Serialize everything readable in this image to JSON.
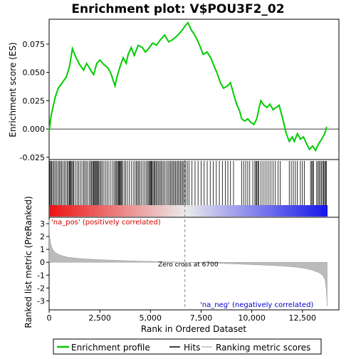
{
  "chart_data": {
    "type": "line",
    "title": "Enrichment plot: V$POU3F2_02",
    "top_panel": {
      "ylabel": "Enrichment score (ES)",
      "ylim": [
        -0.027,
        0.097
      ],
      "yticks": [
        -0.025,
        0.0,
        0.025,
        0.05,
        0.075
      ],
      "ytick_labels": [
        "-0.025",
        "0.000",
        "0.025",
        "0.050",
        "0.075"
      ],
      "series_name": "Enrichment profile",
      "color": "#00cc00",
      "es_points": [
        [
          0,
          -0.002
        ],
        [
          100,
          0.012
        ],
        [
          300,
          0.028
        ],
        [
          450,
          0.036
        ],
        [
          650,
          0.041
        ],
        [
          850,
          0.046
        ],
        [
          1000,
          0.055
        ],
        [
          1150,
          0.071
        ],
        [
          1300,
          0.064
        ],
        [
          1500,
          0.057
        ],
        [
          1700,
          0.052
        ],
        [
          1850,
          0.058
        ],
        [
          2050,
          0.052
        ],
        [
          2200,
          0.048
        ],
        [
          2350,
          0.058
        ],
        [
          2500,
          0.061
        ],
        [
          2700,
          0.057
        ],
        [
          2900,
          0.054
        ],
        [
          3050,
          0.049
        ],
        [
          3250,
          0.038
        ],
        [
          3350,
          0.046
        ],
        [
          3500,
          0.055
        ],
        [
          3650,
          0.063
        ],
        [
          3800,
          0.058
        ],
        [
          3900,
          0.066
        ],
        [
          4050,
          0.072
        ],
        [
          4200,
          0.065
        ],
        [
          4400,
          0.074
        ],
        [
          4600,
          0.072
        ],
        [
          4750,
          0.068
        ],
        [
          4950,
          0.072
        ],
        [
          5100,
          0.076
        ],
        [
          5300,
          0.074
        ],
        [
          5500,
          0.079
        ],
        [
          5700,
          0.083
        ],
        [
          5900,
          0.077
        ],
        [
          6100,
          0.079
        ],
        [
          6300,
          0.082
        ],
        [
          6450,
          0.085
        ],
        [
          6600,
          0.088
        ],
        [
          6700,
          0.091
        ],
        [
          6850,
          0.094
        ],
        [
          7000,
          0.088
        ],
        [
          7150,
          0.084
        ],
        [
          7300,
          0.079
        ],
        [
          7450,
          0.073
        ],
        [
          7600,
          0.066
        ],
        [
          7800,
          0.068
        ],
        [
          8000,
          0.062
        ],
        [
          8150,
          0.055
        ],
        [
          8300,
          0.049
        ],
        [
          8450,
          0.041
        ],
        [
          8600,
          0.036
        ],
        [
          8800,
          0.038
        ],
        [
          8950,
          0.041
        ],
        [
          9100,
          0.031
        ],
        [
          9250,
          0.022
        ],
        [
          9400,
          0.016
        ],
        [
          9500,
          0.009
        ],
        [
          9650,
          0.007
        ],
        [
          9800,
          0.009
        ],
        [
          9950,
          0.006
        ],
        [
          10100,
          0.004
        ],
        [
          10250,
          0.009
        ],
        [
          10350,
          0.018
        ],
        [
          10450,
          0.025
        ],
        [
          10600,
          0.021
        ],
        [
          10750,
          0.019
        ],
        [
          10900,
          0.022
        ],
        [
          11050,
          0.017
        ],
        [
          11200,
          0.019
        ],
        [
          11350,
          0.021
        ],
        [
          11500,
          0.011
        ],
        [
          11700,
          -0.004
        ],
        [
          11850,
          -0.011
        ],
        [
          12000,
          -0.007
        ],
        [
          12100,
          -0.011
        ],
        [
          12250,
          -0.004
        ],
        [
          12400,
          -0.009
        ],
        [
          12550,
          -0.007
        ],
        [
          12700,
          -0.013
        ],
        [
          12850,
          -0.018
        ],
        [
          13000,
          -0.015
        ],
        [
          13150,
          -0.019
        ],
        [
          13300,
          -0.013
        ],
        [
          13450,
          -0.009
        ],
        [
          13600,
          -0.004
        ],
        [
          13700,
          0.002
        ]
      ]
    },
    "hits_panel": {
      "hit_color": "#000000",
      "hit_positions": [
        35,
        80,
        120,
        180,
        240,
        300,
        370,
        440,
        500,
        560,
        620,
        690,
        760,
        830,
        900,
        950,
        1000,
        1040,
        1080,
        1120,
        1170,
        1220,
        1300,
        1380,
        1460,
        1540,
        1620,
        1700,
        1760,
        1830,
        1900,
        1980,
        2050,
        2100,
        2150,
        2200,
        2240,
        2280,
        2320,
        2360,
        2400,
        2450,
        2500,
        2560,
        2620,
        2700,
        2780,
        2860,
        2950,
        3050,
        3150,
        3220,
        3280,
        3330,
        3380,
        3420,
        3460,
        3500,
        3540,
        3580,
        3620,
        3700,
        3780,
        3860,
        3950,
        4050,
        4150,
        4230,
        4300,
        4360,
        4420,
        4480,
        4560,
        4640,
        4720,
        4800,
        4870,
        4920,
        4960,
        5000,
        5040,
        5080,
        5130,
        5180,
        5230,
        5280,
        5340,
        5400,
        5460,
        5520,
        5580,
        5650,
        5720,
        5800,
        5870,
        5940,
        6000,
        6060,
        6120,
        6180,
        6240,
        6300,
        6360,
        6420,
        6480,
        6540,
        6600,
        6660,
        6740,
        6820,
        6900,
        7050,
        7200,
        7350,
        7500,
        7650,
        7800,
        7950,
        8100,
        8250,
        8400,
        8550,
        8700,
        8820,
        8950,
        9100,
        9500,
        9600,
        9700,
        9800,
        9900,
        10050,
        10150,
        10200,
        10250,
        10300,
        10350,
        10450,
        10550,
        10650,
        10750,
        10850,
        10950,
        11050,
        11150,
        11300,
        11400,
        11850,
        11950,
        12050,
        12150,
        12250,
        12400,
        12500,
        12600,
        12900,
        12960,
        13000,
        13050,
        13200,
        13260,
        13320,
        13380,
        13440,
        13500,
        13550,
        13600,
        13640,
        13680
      ]
    },
    "rank_panel": {
      "ylabel": "Ranked list metric (PreRanked)",
      "ylim": [
        -3.7,
        3.5
      ],
      "yticks": [
        -3,
        -2,
        -1,
        0,
        1,
        2,
        3
      ],
      "ytick_labels": [
        "-3",
        "-2",
        "-1",
        "0",
        "1",
        "2",
        "3"
      ],
      "series_name": "Ranking metric scores",
      "color": "#bbbbbb",
      "metric_points": [
        [
          0,
          3.3
        ],
        [
          20,
          2.1
        ],
        [
          60,
          1.6
        ],
        [
          120,
          1.2
        ],
        [
          200,
          0.95
        ],
        [
          300,
          0.78
        ],
        [
          450,
          0.62
        ],
        [
          650,
          0.5
        ],
        [
          900,
          0.4
        ],
        [
          1300,
          0.32
        ],
        [
          1800,
          0.26
        ],
        [
          2500,
          0.2
        ],
        [
          3500,
          0.14
        ],
        [
          4500,
          0.09
        ],
        [
          5500,
          0.05
        ],
        [
          6200,
          0.02
        ],
        [
          6700,
          0.0
        ],
        [
          7500,
          -0.04
        ],
        [
          8500,
          -0.09
        ],
        [
          9500,
          -0.15
        ],
        [
          10500,
          -0.21
        ],
        [
          11500,
          -0.29
        ],
        [
          12200,
          -0.38
        ],
        [
          12700,
          -0.5
        ],
        [
          13000,
          -0.62
        ],
        [
          13300,
          -0.8
        ],
        [
          13500,
          -1.0
        ],
        [
          13620,
          -1.4
        ],
        [
          13680,
          -2.2
        ],
        [
          13720,
          -3.4
        ]
      ],
      "zero_cross_label": "Zero cross at 6700",
      "zero_cross": 6700,
      "pos_label": "'na_pos' (positively correlated)",
      "neg_label": "'na_neg' (negatively correlated)",
      "pos_label_color": "#cc0000",
      "neg_label_color": "#0000cc"
    },
    "xaxis": {
      "xlabel": "Rank in Ordered Dataset",
      "xlim": [
        0,
        14300
      ],
      "xticks": [
        0,
        2500,
        5000,
        7500,
        10000,
        12500
      ],
      "xtick_labels": [
        "0",
        "2,500",
        "5,000",
        "7,500",
        "10,000",
        "12,500"
      ],
      "n_genes": 13730
    },
    "legend": {
      "placement": "bottom",
      "entries": [
        "Enrichment profile",
        "Hits",
        "Ranking metric scores"
      ]
    }
  }
}
